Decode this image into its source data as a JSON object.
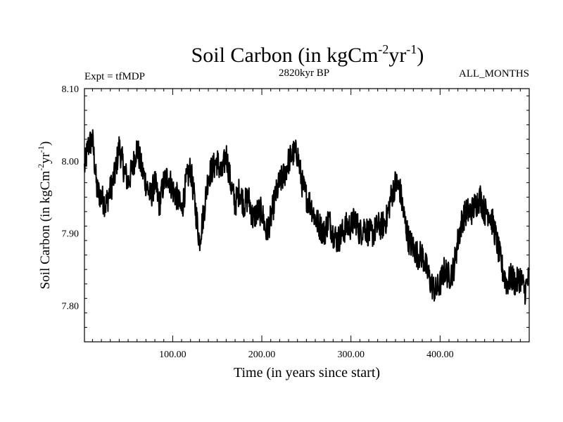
{
  "chart_data": {
    "type": "line",
    "title_main": "Soil Carbon (in kgCm",
    "title_sup1": "-2",
    "title_mid": "yr",
    "title_sup2": "-1",
    "title_end": ")",
    "left_label": "Expt = tfMDP",
    "center_label": "2820kyr BP",
    "right_label": "ALL_MONTHS",
    "xlabel": "Time (in years since start)",
    "ylabel_main": "Soil Carbon (in kgCm",
    "ylabel_sup1": "-2",
    "ylabel_mid": "yr",
    "ylabel_sup2": "-1",
    "ylabel_end": ")",
    "xlim": [
      1,
      500
    ],
    "ylim": [
      7.75,
      8.1
    ],
    "x_ticks": [
      100,
      200,
      300,
      400
    ],
    "x_tick_labels": [
      "100.00",
      "200.00",
      "300.00",
      "400.00"
    ],
    "y_ticks": [
      7.8,
      7.9,
      8.0,
      8.1
    ],
    "y_tick_labels": [
      "7.80",
      "7.90",
      "8.00",
      "8.10"
    ],
    "line_color": "#000000",
    "series": [
      {
        "x": [
          1,
          5,
          10,
          15,
          20,
          25,
          30,
          35,
          40,
          45,
          50,
          55,
          60,
          65,
          70,
          75,
          80,
          85,
          90,
          95,
          100,
          105,
          110,
          115,
          120,
          125,
          130,
          135,
          140,
          145,
          150,
          155,
          160,
          165,
          170,
          175,
          180,
          185,
          190,
          195,
          200,
          205,
          210,
          215,
          220,
          225,
          230,
          235,
          240,
          245,
          250,
          255,
          260,
          265,
          270,
          275,
          280,
          285,
          290,
          295,
          300,
          305,
          310,
          315,
          320,
          325,
          330,
          335,
          340,
          345,
          350,
          355,
          360,
          365,
          370,
          375,
          380,
          385,
          390,
          395,
          400,
          405,
          410,
          415,
          420,
          425,
          430,
          435,
          440,
          445,
          450,
          455,
          460,
          465,
          470,
          475,
          480,
          485,
          490,
          495,
          500
        ],
        "y": [
          7.99,
          8.02,
          8.03,
          7.96,
          7.95,
          7.94,
          7.96,
          7.98,
          8.02,
          7.99,
          7.97,
          7.99,
          8.02,
          7.99,
          7.97,
          7.95,
          7.97,
          7.94,
          7.97,
          7.98,
          7.96,
          7.95,
          7.93,
          7.97,
          7.99,
          7.94,
          7.89,
          7.93,
          7.98,
          7.99,
          8.0,
          7.98,
          8.01,
          7.97,
          7.94,
          7.96,
          7.94,
          7.95,
          7.92,
          7.93,
          7.93,
          7.9,
          7.92,
          7.95,
          7.97,
          7.98,
          8.0,
          8.01,
          8.01,
          7.97,
          7.95,
          7.94,
          7.92,
          7.91,
          7.9,
          7.92,
          7.9,
          7.89,
          7.9,
          7.91,
          7.91,
          7.92,
          7.9,
          7.91,
          7.9,
          7.9,
          7.91,
          7.91,
          7.92,
          7.95,
          7.97,
          7.96,
          7.92,
          7.89,
          7.88,
          7.87,
          7.87,
          7.85,
          7.83,
          7.82,
          7.83,
          7.85,
          7.84,
          7.85,
          7.89,
          7.92,
          7.93,
          7.93,
          7.94,
          7.95,
          7.93,
          7.93,
          7.91,
          7.88,
          7.85,
          7.83,
          7.84,
          7.83,
          7.84,
          7.82,
          7.84
        ]
      }
    ]
  }
}
